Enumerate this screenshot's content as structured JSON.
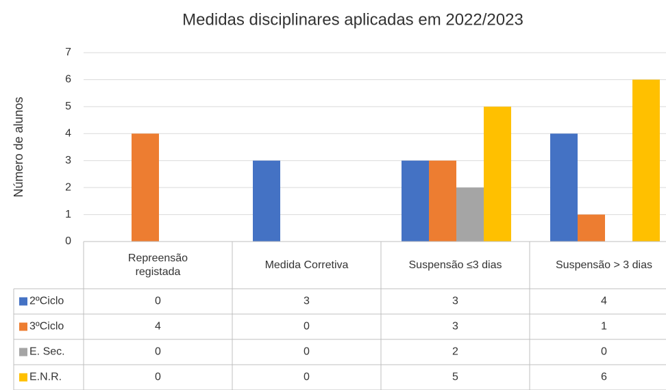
{
  "chart_data": {
    "type": "bar",
    "title": "Medidas disciplinares aplicadas em 2022/2023",
    "y_label": "Número de alunos",
    "categories": [
      "Repreensão registada",
      "Medida Corretiva",
      "Suspensão ≤3 dias",
      "Suspensão > 3 dias"
    ],
    "series": [
      {
        "name": "2ºCiclo",
        "color": "#4472c4",
        "values": [
          0,
          3,
          3,
          4
        ]
      },
      {
        "name": "3ºCiclo",
        "color": "#ed7d31",
        "values": [
          4,
          0,
          3,
          1
        ]
      },
      {
        "name": "E. Sec.",
        "color": "#a5a5a5",
        "values": [
          0,
          0,
          2,
          0
        ]
      },
      {
        "name": "E.N.R.",
        "color": "#ffc000",
        "values": [
          0,
          0,
          5,
          6
        ]
      }
    ],
    "ylim": [
      0,
      7
    ],
    "yticks": [
      0,
      1,
      2,
      3,
      4,
      5,
      6,
      7
    ],
    "grid": true
  }
}
